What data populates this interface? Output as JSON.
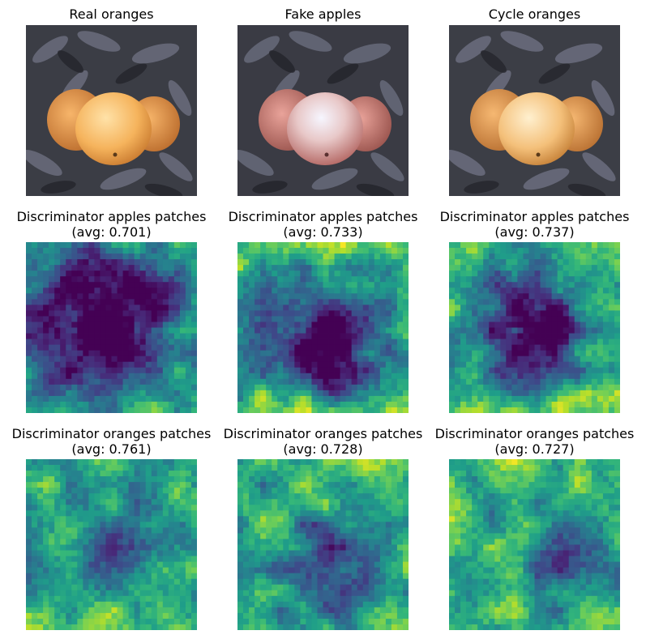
{
  "figure": {
    "titles": [
      [
        "Real oranges",
        "Fake apples",
        "Cycle oranges"
      ],
      [
        "Discriminator apples patches\n(avg: 0.701)",
        "Discriminator apples patches\n(avg: 0.733)",
        "Discriminator apples patches\n(avg: 0.737)"
      ],
      [
        "Discriminator oranges patches\n(avg: 0.761)",
        "Discriminator oranges patches\n(avg: 0.728)",
        "Discriminator oranges patches\n(avg: 0.727)"
      ]
    ]
  },
  "chart_data": [
    {
      "type": "image",
      "title": "Real oranges",
      "content": "oranges"
    },
    {
      "type": "image",
      "title": "Fake apples",
      "content": "apples"
    },
    {
      "type": "image",
      "title": "Cycle oranges",
      "content": "oranges"
    },
    {
      "type": "heatmap",
      "title": "Discriminator apples patches",
      "avg": 0.701,
      "colormap": "viridis",
      "grid": false
    },
    {
      "type": "heatmap",
      "title": "Discriminator apples patches",
      "avg": 0.733,
      "colormap": "viridis",
      "grid": false
    },
    {
      "type": "heatmap",
      "title": "Discriminator apples patches",
      "avg": 0.737,
      "colormap": "viridis",
      "grid": false
    },
    {
      "type": "heatmap",
      "title": "Discriminator oranges patches",
      "avg": 0.761,
      "colormap": "viridis",
      "grid": false
    },
    {
      "type": "heatmap",
      "title": "Discriminator oranges patches",
      "avg": 0.728,
      "colormap": "viridis",
      "grid": false
    },
    {
      "type": "heatmap",
      "title": "Discriminator oranges patches",
      "avg": 0.727,
      "colormap": "viridis",
      "grid": false
    }
  ],
  "colors": {
    "leaf_dark": "#2e2f35",
    "leaf_mid": "#5d6170",
    "orange": "#f0a64a",
    "orange_light": "#ffd79a",
    "apple": "#d89a96",
    "apple_light": "#f6f2f8"
  }
}
